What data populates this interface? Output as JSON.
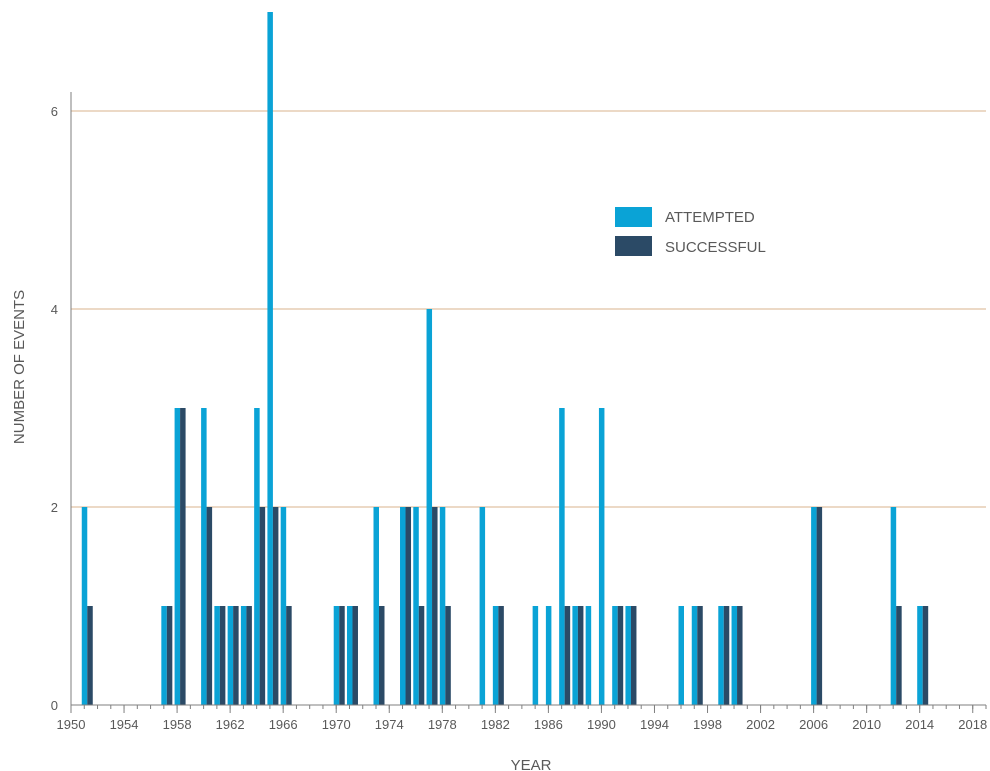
{
  "chart_data": {
    "type": "bar",
    "xlabel": "YEAR",
    "ylabel": "NUMBER OF EVENTS",
    "x_ticks": [
      "1950",
      "1954",
      "1958",
      "1962",
      "1966",
      "1970",
      "1974",
      "1978",
      "1982",
      "1986",
      "1990",
      "1994",
      "1998",
      "2002",
      "2006",
      "2010",
      "2014",
      "2018"
    ],
    "y_ticks": [
      "0",
      "2",
      "4",
      "6"
    ],
    "ylim": [
      0,
      6.3
    ],
    "xlim": [
      1950,
      2019
    ],
    "grid": "horizontal",
    "legend_position": "upper-right",
    "series": [
      {
        "name": "ATTEMPTED",
        "color": "#0aa3d6",
        "points": [
          [
            1951,
            2
          ],
          [
            1957,
            1
          ],
          [
            1958,
            3
          ],
          [
            1960,
            3
          ],
          [
            1961,
            1
          ],
          [
            1962,
            1
          ],
          [
            1963,
            1
          ],
          [
            1964,
            3
          ],
          [
            1965,
            7
          ],
          [
            1966,
            2
          ],
          [
            1970,
            1
          ],
          [
            1971,
            1
          ],
          [
            1973,
            2
          ],
          [
            1975,
            2
          ],
          [
            1976,
            2
          ],
          [
            1977,
            4
          ],
          [
            1978,
            2
          ],
          [
            1981,
            2
          ],
          [
            1982,
            1
          ],
          [
            1985,
            1
          ],
          [
            1986,
            1
          ],
          [
            1987,
            3
          ],
          [
            1988,
            1
          ],
          [
            1989,
            1
          ],
          [
            1990,
            3
          ],
          [
            1991,
            1
          ],
          [
            1992,
            1
          ],
          [
            1996,
            1
          ],
          [
            1997,
            1
          ],
          [
            1999,
            1
          ],
          [
            2000,
            1
          ],
          [
            2006,
            2
          ],
          [
            2012,
            2
          ],
          [
            2014,
            1
          ]
        ]
      },
      {
        "name": "SUCCESSFUL",
        "color": "#2b4a66",
        "points": [
          [
            1951,
            1
          ],
          [
            1957,
            1
          ],
          [
            1958,
            3
          ],
          [
            1960,
            2
          ],
          [
            1961,
            1
          ],
          [
            1962,
            1
          ],
          [
            1963,
            1
          ],
          [
            1964,
            2
          ],
          [
            1965,
            2
          ],
          [
            1966,
            1
          ],
          [
            1970,
            1
          ],
          [
            1971,
            1
          ],
          [
            1973,
            1
          ],
          [
            1975,
            2
          ],
          [
            1976,
            1
          ],
          [
            1977,
            2
          ],
          [
            1978,
            1
          ],
          [
            1982,
            1
          ],
          [
            1987,
            1
          ],
          [
            1988,
            1
          ],
          [
            1991,
            1
          ],
          [
            1992,
            1
          ],
          [
            1997,
            1
          ],
          [
            1999,
            1
          ],
          [
            2000,
            1
          ],
          [
            2006,
            2
          ],
          [
            2012,
            1
          ],
          [
            2014,
            1
          ]
        ]
      }
    ]
  },
  "colors": {
    "gridline": "#d9b38c",
    "axis": "#7f7f7f"
  }
}
